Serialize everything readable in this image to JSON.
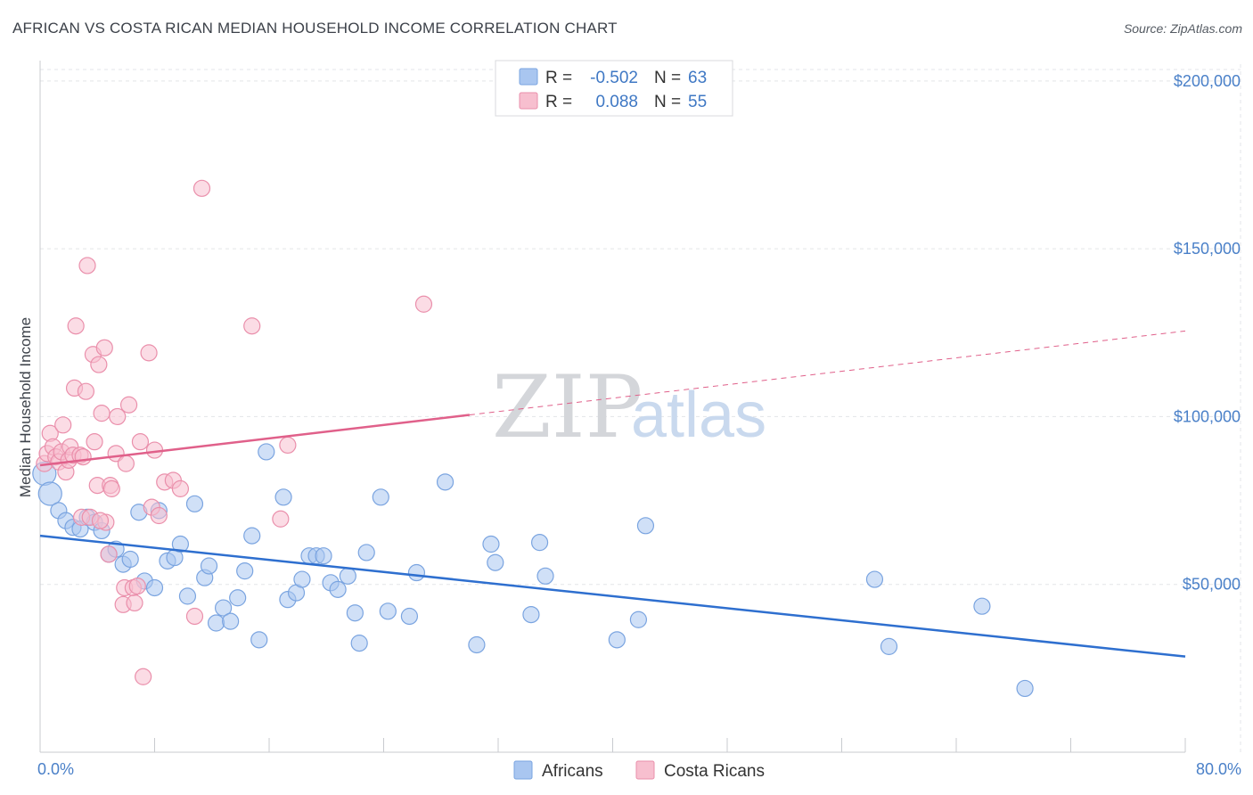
{
  "header": {
    "title": "AFRICAN VS COSTA RICAN MEDIAN HOUSEHOLD INCOME CORRELATION CHART",
    "source": "Source: ZipAtlas.com"
  },
  "watermark": {
    "zip": "ZIP",
    "atlas": "atlas"
  },
  "legend": {
    "rows": [
      {
        "r_label": "R =",
        "r_value": "-0.502",
        "n_label": "N =",
        "n_value": "63",
        "color": "#a9c6f0",
        "stroke": "#7aa4e0"
      },
      {
        "r_label": "R =",
        "r_value": "0.088",
        "n_label": "N =",
        "n_value": "55",
        "color": "#f7bfcf",
        "stroke": "#ea8fab"
      }
    ]
  },
  "bottom_legend": [
    "Africans",
    "Costa Ricans"
  ],
  "chart_data": {
    "type": "scatter",
    "title": "AFRICAN VS COSTA RICAN MEDIAN HOUSEHOLD INCOME CORRELATION CHART",
    "xlabel": "",
    "ylabel": "Median Household Income",
    "xlim": [
      0,
      80
    ],
    "ylim": [
      0,
      205000
    ],
    "x_tick_labels": [
      "0.0%",
      "80.0%"
    ],
    "y_ticks": [
      50000,
      100000,
      150000,
      200000
    ],
    "y_tick_labels": [
      "$50,000",
      "$100,000",
      "$150,000",
      "$200,000"
    ],
    "grid": true,
    "legend_position": "top-center",
    "series": [
      {
        "name": "Africans",
        "color": "#a9c6f0",
        "line_color": "#2e6fcf",
        "trend": {
          "x": [
            0,
            80
          ],
          "y": [
            64500,
            28500
          ],
          "dashed_from": null
        },
        "points": [
          [
            0.3,
            83000
          ],
          [
            0.7,
            77000
          ],
          [
            1.3,
            72000
          ],
          [
            1.8,
            69000
          ],
          [
            2.3,
            67000
          ],
          [
            2.8,
            66500
          ],
          [
            3.3,
            70000
          ],
          [
            3.8,
            68500
          ],
          [
            4.3,
            66000
          ],
          [
            4.8,
            59000
          ],
          [
            5.3,
            60500
          ],
          [
            5.8,
            56000
          ],
          [
            6.3,
            57500
          ],
          [
            6.9,
            71500
          ],
          [
            7.3,
            51000
          ],
          [
            8.0,
            49000
          ],
          [
            8.3,
            72000
          ],
          [
            8.9,
            57000
          ],
          [
            9.4,
            58000
          ],
          [
            9.8,
            62000
          ],
          [
            10.3,
            46500
          ],
          [
            10.8,
            74000
          ],
          [
            11.5,
            52000
          ],
          [
            11.8,
            55500
          ],
          [
            12.3,
            38500
          ],
          [
            12.8,
            43000
          ],
          [
            13.3,
            39000
          ],
          [
            13.8,
            46000
          ],
          [
            14.3,
            54000
          ],
          [
            14.8,
            64500
          ],
          [
            15.3,
            33500
          ],
          [
            15.8,
            89500
          ],
          [
            17.0,
            76000
          ],
          [
            17.3,
            45500
          ],
          [
            17.9,
            47500
          ],
          [
            18.3,
            51500
          ],
          [
            18.8,
            58500
          ],
          [
            19.3,
            58500
          ],
          [
            19.8,
            58500
          ],
          [
            20.3,
            50500
          ],
          [
            20.8,
            48500
          ],
          [
            21.5,
            52500
          ],
          [
            22.0,
            41500
          ],
          [
            22.3,
            32500
          ],
          [
            22.8,
            59500
          ],
          [
            23.8,
            76000
          ],
          [
            24.3,
            42000
          ],
          [
            25.8,
            40500
          ],
          [
            26.3,
            53500
          ],
          [
            28.3,
            80500
          ],
          [
            30.5,
            32000
          ],
          [
            31.5,
            62000
          ],
          [
            31.8,
            56500
          ],
          [
            34.3,
            41000
          ],
          [
            34.9,
            62500
          ],
          [
            35.3,
            52500
          ],
          [
            40.3,
            33500
          ],
          [
            41.8,
            39500
          ],
          [
            42.3,
            67500
          ],
          [
            58.3,
            51500
          ],
          [
            59.3,
            31500
          ],
          [
            65.8,
            43500
          ],
          [
            68.8,
            19000
          ]
        ]
      },
      {
        "name": "Costa Ricans",
        "color": "#f7bfcf",
        "line_color": "#e0608a",
        "trend": {
          "x": [
            0,
            80
          ],
          "y": [
            85500,
            125500
          ],
          "dashed_from": 30
        },
        "points": [
          [
            0.3,
            86000
          ],
          [
            0.5,
            89000
          ],
          [
            0.7,
            95000
          ],
          [
            0.9,
            91000
          ],
          [
            1.1,
            88000
          ],
          [
            1.3,
            86500
          ],
          [
            1.5,
            89500
          ],
          [
            1.6,
            97500
          ],
          [
            1.8,
            83500
          ],
          [
            2.0,
            87000
          ],
          [
            2.1,
            91000
          ],
          [
            2.3,
            88500
          ],
          [
            2.4,
            108500
          ],
          [
            2.5,
            127000
          ],
          [
            2.8,
            88500
          ],
          [
            2.9,
            70000
          ],
          [
            3.0,
            88000
          ],
          [
            3.2,
            107500
          ],
          [
            3.3,
            145000
          ],
          [
            3.5,
            70000
          ],
          [
            3.7,
            118500
          ],
          [
            3.8,
            92500
          ],
          [
            4.0,
            79500
          ],
          [
            4.1,
            115500
          ],
          [
            4.3,
            101000
          ],
          [
            4.5,
            120500
          ],
          [
            4.6,
            68500
          ],
          [
            4.8,
            59000
          ],
          [
            4.9,
            79500
          ],
          [
            5.0,
            78500
          ],
          [
            5.3,
            89000
          ],
          [
            5.4,
            100000
          ],
          [
            5.8,
            44000
          ],
          [
            5.9,
            49000
          ],
          [
            6.0,
            86000
          ],
          [
            6.2,
            103500
          ],
          [
            6.5,
            49000
          ],
          [
            6.6,
            44500
          ],
          [
            6.8,
            49500
          ],
          [
            7.0,
            92500
          ],
          [
            7.2,
            22500
          ],
          [
            7.6,
            119000
          ],
          [
            7.8,
            73000
          ],
          [
            8.0,
            90000
          ],
          [
            8.3,
            70500
          ],
          [
            8.7,
            80500
          ],
          [
            9.3,
            81000
          ],
          [
            9.8,
            78500
          ],
          [
            10.8,
            40500
          ],
          [
            11.3,
            168000
          ],
          [
            14.8,
            127000
          ],
          [
            16.8,
            69500
          ],
          [
            17.3,
            91500
          ],
          [
            26.8,
            133500
          ],
          [
            4.2,
            69000
          ]
        ]
      }
    ]
  }
}
